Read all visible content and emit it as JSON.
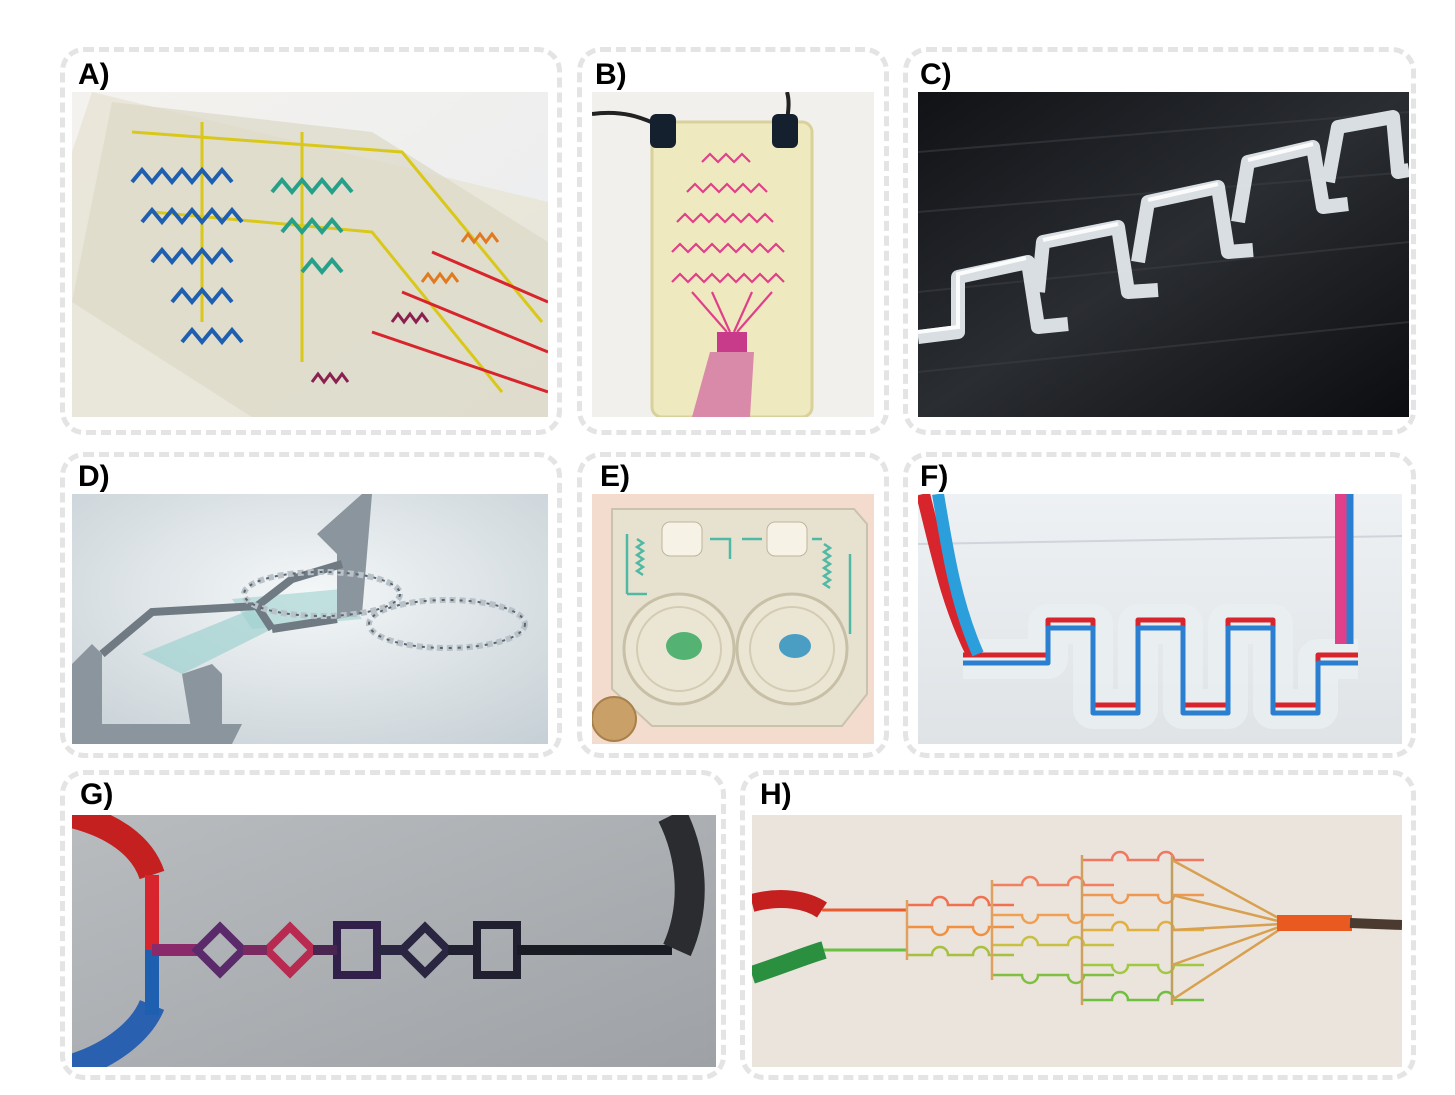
{
  "figure": {
    "panels": [
      {
        "label": "A)"
      },
      {
        "label": "B)"
      },
      {
        "label": "C)"
      },
      {
        "label": "D)"
      },
      {
        "label": "E)"
      },
      {
        "label": "F)"
      },
      {
        "label": "G)"
      },
      {
        "label": "H)"
      }
    ]
  },
  "colors": {
    "panel_border": "#e4e4e4",
    "label_text": "#000000",
    "dye_blue": "#1e5fb0",
    "dye_red": "#d8242c",
    "dye_green": "#3aa860",
    "dye_magenta": "#e0408a",
    "dye_yellow": "#d9c81a"
  }
}
